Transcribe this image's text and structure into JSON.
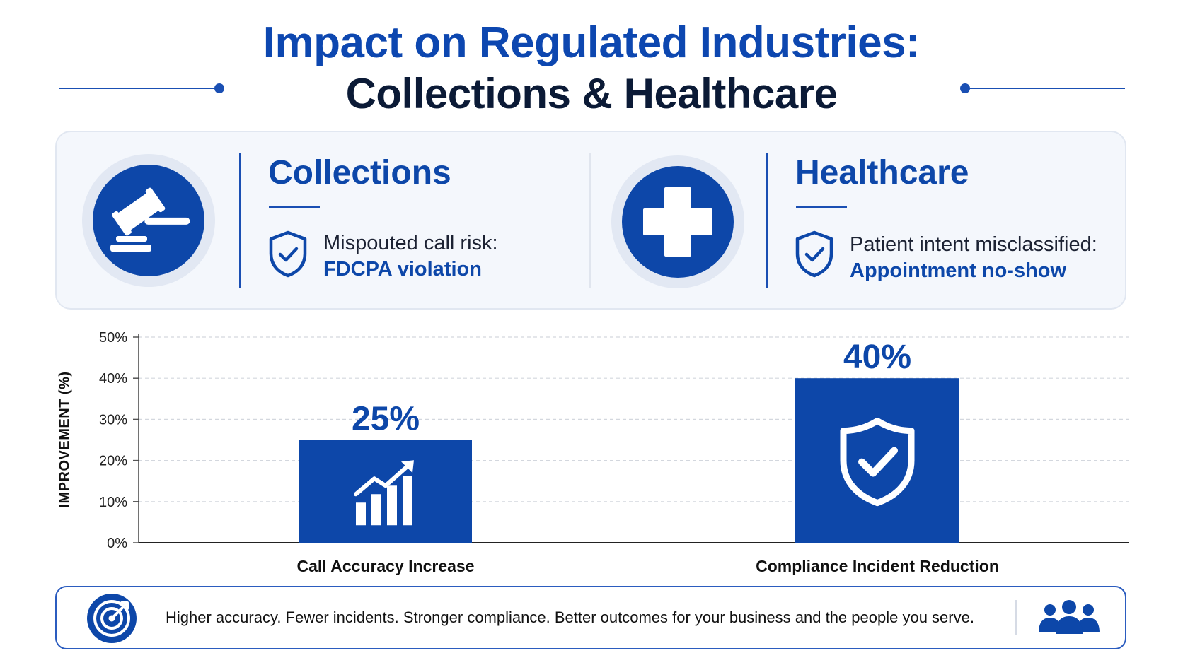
{
  "header": {
    "title_line1": "Impact on Regulated Industries:",
    "title_line2": "Collections & Healthcare"
  },
  "sections": [
    {
      "title": "Collections",
      "icon": "gavel-icon",
      "risk_label": "Mispouted call risk:",
      "risk_value": "FDCPA violation"
    },
    {
      "title": "Healthcare",
      "icon": "medical-cross-icon",
      "risk_label": "Patient intent misclassified:",
      "risk_value": "Appointment no-show"
    }
  ],
  "chart_data": {
    "type": "bar",
    "categories": [
      "Call Accuracy Increase",
      "Compliance Incident Reduction"
    ],
    "values": [
      25,
      40
    ],
    "value_labels": [
      "25%",
      "40%"
    ],
    "bar_icons": [
      "trending-up-icon",
      "shield-check-icon"
    ],
    "ylabel": "IMPROVEMENT (%)",
    "ylim": [
      0,
      50
    ],
    "yticks": [
      0,
      10,
      20,
      30,
      40,
      50
    ],
    "ytick_labels": [
      "0%",
      "10%",
      "20%",
      "30%",
      "40%",
      "50%"
    ],
    "grid": true
  },
  "footer": {
    "icon_left": "target-icon",
    "text": "Higher accuracy. Fewer incidents. Stronger compliance. Better outcomes for your business and the people you serve.",
    "icon_right": "people-group-icon"
  },
  "colors": {
    "primary": "#0d47a9",
    "title_dark": "#0b1a36",
    "panel_bg": "#f4f7fc"
  }
}
